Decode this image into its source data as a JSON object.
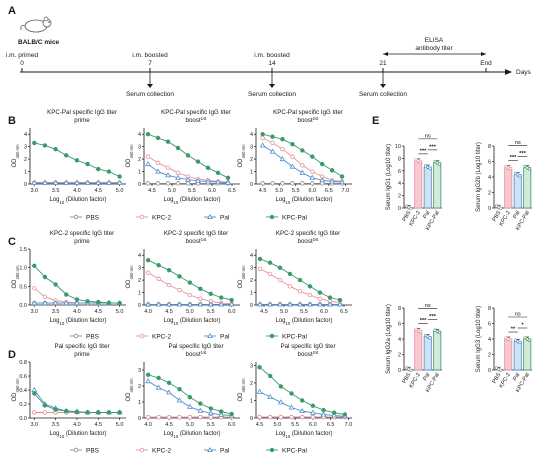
{
  "colors": {
    "PBS": "#8c8c8c",
    "KPC-2": "#e8909c",
    "Pal": "#4f8fcf",
    "KPC-Pal": "#3a9a6a",
    "axis": "#1a1a1a"
  },
  "panelA": {
    "letter": "A",
    "mouse": "BALB/C mice",
    "timepoints": [
      {
        "label": "i.m. primed",
        "day": "0"
      },
      {
        "label": "i.m. boosted",
        "day": "7"
      },
      {
        "label": "i.m. boosted",
        "day": "14"
      },
      {
        "label": "",
        "day": "21"
      },
      {
        "label": "End",
        "day": ""
      }
    ],
    "elisa": "ELISA",
    "elisa_sub": "antibody titer",
    "serum": "Serum collection",
    "days": "Days"
  },
  "legend": [
    {
      "name": "PBS",
      "marker": "circle"
    },
    {
      "name": "KPC-2",
      "marker": "circle"
    },
    {
      "name": "Pal",
      "marker": "triangle"
    },
    {
      "name": "KPC-Pal",
      "marker": "circle"
    }
  ],
  "curve_xlabel": "Log10 (Dilution factor)",
  "curve_ylabel": "OD450 nm",
  "chart_data": [
    {
      "id": "B1",
      "letter": "B",
      "type": "line",
      "title": [
        "KPC-Pal specific IgG titer",
        "prime"
      ],
      "xlim": [
        2.9,
        5.15
      ],
      "ylim": [
        0,
        4.5
      ],
      "xticks": [
        "3.0",
        "3.5",
        "4.0",
        "4.5",
        "5.0"
      ],
      "yticks": [
        "0",
        "1",
        "2",
        "3",
        "4"
      ],
      "x": [
        3.0,
        3.25,
        3.5,
        3.75,
        4.0,
        4.25,
        4.5,
        4.75,
        5.0
      ],
      "series": [
        {
          "name": "PBS",
          "values": [
            0.1,
            0.1,
            0.1,
            0.1,
            0.1,
            0.1,
            0.1,
            0.1,
            0.1
          ]
        },
        {
          "name": "KPC-2",
          "values": [
            0.1,
            0.1,
            0.1,
            0.1,
            0.1,
            0.1,
            0.1,
            0.1,
            0.1
          ]
        },
        {
          "name": "Pal",
          "values": [
            0.1,
            0.1,
            0.1,
            0.1,
            0.1,
            0.1,
            0.1,
            0.1,
            0.1
          ]
        },
        {
          "name": "KPC-Pal",
          "values": [
            3.3,
            3.1,
            2.8,
            2.3,
            1.9,
            1.6,
            1.2,
            1.0,
            0.6
          ]
        }
      ]
    },
    {
      "id": "B2",
      "letter": "",
      "type": "line",
      "title": [
        "KPC-Pal specific IgG titer",
        "boost1st"
      ],
      "xlim": [
        4.3,
        6.7
      ],
      "ylim": [
        0,
        4.5
      ],
      "xticks": [
        "4.5",
        "5.0",
        "5.5",
        "6.0",
        "6.5"
      ],
      "yticks": [
        "0",
        "1",
        "2",
        "3",
        "4"
      ],
      "x": [
        4.4,
        4.65,
        4.9,
        5.15,
        5.4,
        5.65,
        5.9,
        6.15,
        6.4
      ],
      "series": [
        {
          "name": "PBS",
          "values": [
            0.05,
            0.05,
            0.05,
            0.05,
            0.05,
            0.05,
            0.05,
            0.05,
            0.05
          ]
        },
        {
          "name": "KPC-2",
          "values": [
            2.2,
            1.7,
            1.3,
            0.9,
            0.6,
            0.4,
            0.3,
            0.2,
            0.15
          ]
        },
        {
          "name": "Pal",
          "values": [
            1.6,
            1.0,
            0.7,
            0.5,
            0.35,
            0.25,
            0.2,
            0.15,
            0.1
          ]
        },
        {
          "name": "KPC-Pal",
          "values": [
            4.0,
            3.7,
            3.4,
            2.9,
            2.3,
            1.8,
            1.3,
            0.9,
            0.5
          ]
        }
      ]
    },
    {
      "id": "B3",
      "letter": "",
      "type": "line",
      "title": [
        "KPC-Pal specific IgG titer",
        "boost2st"
      ],
      "xlim": [
        4.3,
        7.2
      ],
      "ylim": [
        0,
        4.5
      ],
      "xticks": [
        "4.5",
        "5.0",
        "5.5",
        "6.0",
        "6.5",
        "7.0"
      ],
      "yticks": [
        "0",
        "1",
        "2",
        "3",
        "4"
      ],
      "x": [
        4.5,
        4.8,
        5.1,
        5.4,
        5.7,
        6.0,
        6.3,
        6.6,
        6.9
      ],
      "series": [
        {
          "name": "PBS",
          "values": [
            0.05,
            0.05,
            0.05,
            0.05,
            0.05,
            0.05,
            0.05,
            0.05,
            0.05
          ]
        },
        {
          "name": "KPC-2",
          "values": [
            3.7,
            3.3,
            2.8,
            2.2,
            1.5,
            1.0,
            0.6,
            0.3,
            0.2
          ]
        },
        {
          "name": "Pal",
          "values": [
            3.1,
            2.6,
            2.0,
            1.4,
            0.9,
            0.5,
            0.3,
            0.2,
            0.15
          ]
        },
        {
          "name": "KPC-Pal",
          "values": [
            4.0,
            3.8,
            3.6,
            3.2,
            2.7,
            2.2,
            1.6,
            1.1,
            0.6
          ]
        }
      ]
    },
    {
      "id": "C1",
      "letter": "C",
      "type": "line",
      "title": [
        "KPC-2 specific IgG titer",
        "prime"
      ],
      "xlim": [
        2.9,
        5.15
      ],
      "ylim": [
        0,
        1.5
      ],
      "xticks": [
        "3.0",
        "3.5",
        "4.0",
        "4.5",
        "5.0"
      ],
      "yticks": [
        "0.0",
        "0.5",
        "1.0",
        "1.5"
      ],
      "x": [
        3.0,
        3.25,
        3.5,
        3.75,
        4.0,
        4.25,
        4.5,
        4.75,
        5.0
      ],
      "series": [
        {
          "name": "PBS",
          "values": [
            0.05,
            0.05,
            0.05,
            0.05,
            0.05,
            0.05,
            0.05,
            0.05,
            0.05
          ]
        },
        {
          "name": "KPC-2",
          "values": [
            0.45,
            0.22,
            0.12,
            0.08,
            0.06,
            0.05,
            0.05,
            0.05,
            0.05
          ]
        },
        {
          "name": "Pal",
          "values": [
            0.05,
            0.05,
            0.05,
            0.05,
            0.05,
            0.05,
            0.05,
            0.05,
            0.05
          ]
        },
        {
          "name": "KPC-Pal",
          "values": [
            1.05,
            0.75,
            0.55,
            0.28,
            0.15,
            0.1,
            0.08,
            0.06,
            0.05
          ]
        }
      ]
    },
    {
      "id": "C2",
      "letter": "",
      "type": "line",
      "title": [
        "KPC-2 specific IgG titer",
        "boost1st"
      ],
      "xlim": [
        3.9,
        6.2
      ],
      "ylim": [
        0,
        4.5
      ],
      "xticks": [
        "4.0",
        "4.5",
        "5.0",
        "5.5",
        "6.0"
      ],
      "yticks": [
        "0",
        "1",
        "2",
        "3",
        "4"
      ],
      "x": [
        4.0,
        4.25,
        4.5,
        4.75,
        5.0,
        5.25,
        5.5,
        5.75,
        6.0
      ],
      "series": [
        {
          "name": "PBS",
          "values": [
            0.05,
            0.05,
            0.05,
            0.05,
            0.05,
            0.05,
            0.05,
            0.05,
            0.05
          ]
        },
        {
          "name": "KPC-2",
          "values": [
            2.6,
            2.1,
            1.6,
            1.2,
            0.8,
            0.5,
            0.3,
            0.15,
            0.1
          ]
        },
        {
          "name": "Pal",
          "values": [
            0.05,
            0.05,
            0.05,
            0.05,
            0.05,
            0.05,
            0.05,
            0.05,
            0.05
          ]
        },
        {
          "name": "KPC-Pal",
          "values": [
            3.6,
            3.2,
            2.8,
            2.3,
            1.8,
            1.3,
            0.9,
            0.6,
            0.4
          ]
        }
      ]
    },
    {
      "id": "C3",
      "letter": "",
      "type": "line",
      "title": [
        "KPC-2 specific IgG titer",
        "boost2st"
      ],
      "xlim": [
        4.3,
        6.7
      ],
      "ylim": [
        0,
        4.5
      ],
      "xticks": [
        "4.5",
        "5.0",
        "5.5",
        "6.0",
        "6.5"
      ],
      "yticks": [
        "0",
        "1",
        "2",
        "3",
        "4"
      ],
      "x": [
        4.4,
        4.65,
        4.9,
        5.15,
        5.4,
        5.65,
        5.9,
        6.15,
        6.4
      ],
      "series": [
        {
          "name": "PBS",
          "values": [
            0.05,
            0.05,
            0.05,
            0.05,
            0.05,
            0.05,
            0.05,
            0.05,
            0.05
          ]
        },
        {
          "name": "KPC-2",
          "values": [
            2.9,
            2.5,
            2.0,
            1.5,
            1.1,
            0.8,
            0.5,
            0.3,
            0.2
          ]
        },
        {
          "name": "Pal",
          "values": [
            0.05,
            0.05,
            0.05,
            0.05,
            0.05,
            0.05,
            0.05,
            0.05,
            0.05
          ]
        },
        {
          "name": "KPC-Pal",
          "values": [
            3.7,
            3.4,
            3.0,
            2.5,
            2.0,
            1.5,
            1.0,
            0.6,
            0.4
          ]
        }
      ]
    },
    {
      "id": "D1",
      "letter": "D",
      "type": "line",
      "title": [
        "Pal specific IgG titer",
        "prime"
      ],
      "xlim": [
        2.9,
        5.15
      ],
      "ylim": [
        0,
        0.8
      ],
      "xticks": [
        "3.0",
        "3.5",
        "4.0",
        "4.5",
        "5.0"
      ],
      "yticks": [
        "0.0",
        "0.2",
        "0.4",
        "0.6",
        "0.8"
      ],
      "x": [
        3.0,
        3.25,
        3.5,
        3.75,
        4.0,
        4.25,
        4.5,
        4.75,
        5.0
      ],
      "series": [
        {
          "name": "PBS",
          "values": [
            0.08,
            0.08,
            0.08,
            0.08,
            0.08,
            0.08,
            0.08,
            0.08,
            0.08
          ]
        },
        {
          "name": "KPC-2",
          "values": [
            0.08,
            0.08,
            0.08,
            0.08,
            0.08,
            0.08,
            0.08,
            0.08,
            0.08
          ]
        },
        {
          "name": "Pal",
          "values": [
            0.4,
            0.2,
            0.14,
            0.1,
            0.09,
            0.08,
            0.08,
            0.08,
            0.08
          ]
        },
        {
          "name": "KPC-Pal",
          "values": [
            0.35,
            0.18,
            0.12,
            0.1,
            0.09,
            0.08,
            0.08,
            0.08,
            0.08
          ]
        }
      ]
    },
    {
      "id": "D2",
      "letter": "",
      "type": "line",
      "title": [
        "Pal specific IgG titer",
        "boost1st"
      ],
      "xlim": [
        3.9,
        6.2
      ],
      "ylim": [
        0,
        3.5
      ],
      "xticks": [
        "4.0",
        "4.5",
        "5.0",
        "5.5",
        "6.0"
      ],
      "yticks": [
        "0",
        "1",
        "2",
        "3"
      ],
      "x": [
        4.0,
        4.25,
        4.5,
        4.75,
        5.0,
        5.25,
        5.5,
        5.75,
        6.0
      ],
      "series": [
        {
          "name": "PBS",
          "values": [
            0.05,
            0.05,
            0.05,
            0.05,
            0.05,
            0.05,
            0.05,
            0.05,
            0.05
          ]
        },
        {
          "name": "KPC-2",
          "values": [
            0.05,
            0.05,
            0.05,
            0.05,
            0.05,
            0.05,
            0.05,
            0.05,
            0.05
          ]
        },
        {
          "name": "Pal",
          "values": [
            2.3,
            1.9,
            1.6,
            1.1,
            0.7,
            0.45,
            0.3,
            0.2,
            0.15
          ]
        },
        {
          "name": "KPC-Pal",
          "values": [
            2.7,
            2.5,
            2.2,
            1.8,
            1.3,
            0.9,
            0.6,
            0.4,
            0.25
          ]
        }
      ]
    },
    {
      "id": "D3",
      "letter": "",
      "type": "line",
      "title": [
        "Pal specific IgG titer",
        "boost2st"
      ],
      "xlim": [
        4.4,
        7.1
      ],
      "ylim": [
        0,
        3.2
      ],
      "xticks": [
        "4.5",
        "5.0",
        "5.5",
        "6.0",
        "6.5",
        "7.0"
      ],
      "yticks": [
        "0",
        "1",
        "2",
        "3"
      ],
      "x": [
        4.5,
        4.8,
        5.1,
        5.4,
        5.7,
        6.0,
        6.3,
        6.6,
        6.9
      ],
      "series": [
        {
          "name": "PBS",
          "values": [
            0.05,
            0.05,
            0.05,
            0.05,
            0.05,
            0.05,
            0.05,
            0.05,
            0.05
          ]
        },
        {
          "name": "KPC-2",
          "values": [
            0.05,
            0.05,
            0.05,
            0.05,
            0.05,
            0.05,
            0.05,
            0.05,
            0.05
          ]
        },
        {
          "name": "Pal",
          "values": [
            1.5,
            1.2,
            0.9,
            0.6,
            0.4,
            0.3,
            0.2,
            0.15,
            0.1
          ]
        },
        {
          "name": "KPC-Pal",
          "values": [
            2.9,
            2.4,
            1.8,
            1.4,
            1.0,
            0.7,
            0.45,
            0.3,
            0.2
          ]
        }
      ]
    },
    {
      "id": "E1",
      "letter": "E",
      "type": "bar",
      "ylabel": "Serum IgG1 (Log10 titer)",
      "ylim": [
        0,
        10
      ],
      "yticks": [
        "0",
        "2",
        "4",
        "6",
        "8",
        "10"
      ],
      "categories": [
        "PBS",
        "KPC-2",
        "Pal",
        "KPC-Pal"
      ],
      "values": [
        0.1,
        7.6,
        6.6,
        7.3
      ],
      "sig": [
        {
          "from": 1,
          "to": 2,
          "label": "***"
        },
        {
          "from": 2,
          "to": 3,
          "label": "***"
        },
        {
          "from": 1,
          "to": 3,
          "label": "ns"
        }
      ]
    },
    {
      "id": "E2",
      "letter": "",
      "type": "bar",
      "ylabel": "Serum IgG2b (Log10 titer)",
      "ylim": [
        0,
        8
      ],
      "yticks": [
        "0",
        "2",
        "4",
        "6",
        "8"
      ],
      "categories": [
        "PBS",
        "KPC-2",
        "Pal",
        "KPC-Pal"
      ],
      "values": [
        0.1,
        5.2,
        4.3,
        5.2
      ],
      "sig": [
        {
          "from": 1,
          "to": 2,
          "label": "***"
        },
        {
          "from": 2,
          "to": 3,
          "label": "***"
        },
        {
          "from": 1,
          "to": 3,
          "label": "ns"
        }
      ]
    },
    {
      "id": "E3",
      "letter": "",
      "type": "bar",
      "ylabel": "Serum IgG2a (Log10 titer)",
      "ylim": [
        0,
        8
      ],
      "yticks": [
        "0",
        "2",
        "4",
        "6",
        "8"
      ],
      "categories": [
        "PBS",
        "KPC-2",
        "Pal",
        "KPC-Pal"
      ],
      "values": [
        0.1,
        5.1,
        4.3,
        5.0
      ],
      "sig": [
        {
          "from": 1,
          "to": 2,
          "label": "***"
        },
        {
          "from": 2,
          "to": 3,
          "label": "***"
        },
        {
          "from": 1,
          "to": 3,
          "label": "ns"
        }
      ]
    },
    {
      "id": "E4",
      "letter": "",
      "type": "bar",
      "ylabel": "Serum IgG3 (Log10 titer)",
      "ylim": [
        0,
        8
      ],
      "yticks": [
        "0",
        "2",
        "4",
        "6",
        "8"
      ],
      "categories": [
        "PBS",
        "KPC-2",
        "Pal",
        "KPC-Pal"
      ],
      "values": [
        0.1,
        4.0,
        3.7,
        4.0
      ],
      "sig": [
        {
          "from": 1,
          "to": 2,
          "label": "**"
        },
        {
          "from": 2,
          "to": 3,
          "label": "*"
        },
        {
          "from": 1,
          "to": 3,
          "label": "ns"
        }
      ]
    }
  ]
}
